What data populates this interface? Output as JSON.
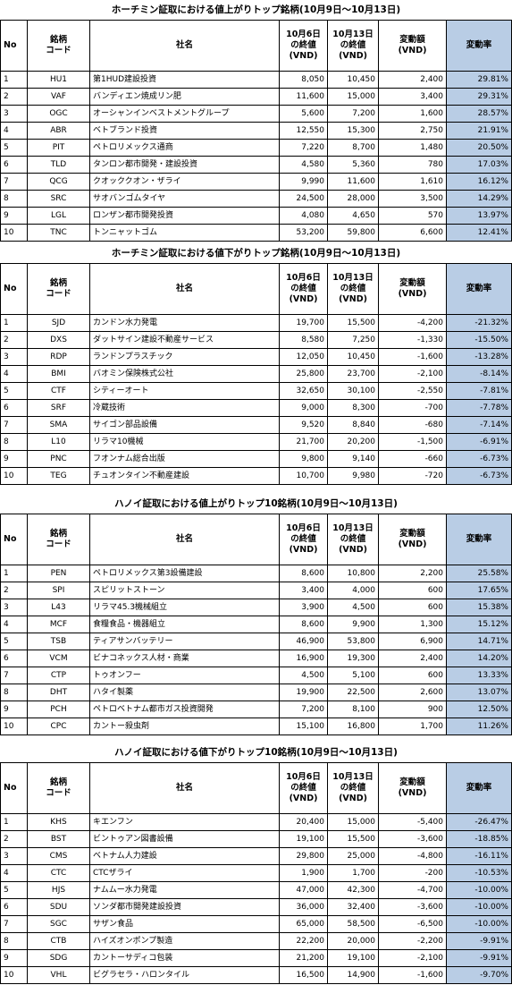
{
  "headers": {
    "no": "No",
    "code_line1": "銘柄",
    "code_line2": "コード",
    "name": "社名",
    "prev_line1": "10月6日",
    "prev_line2": "の終値",
    "prev_line3": "(VND)",
    "curr_line1": "10月13日",
    "curr_line2": "の終値",
    "curr_line3": "(VND)",
    "change_line1": "変動額",
    "change_line2": "(VND)",
    "rate": "変動率"
  },
  "sections": [
    {
      "title": "ホーチミン証取における値上がりトップ銘柄(10月9日～10月13日)",
      "rows": [
        {
          "no": "1",
          "code": "HU1",
          "name": "第1HUD建設投資",
          "prev": "8,050",
          "curr": "10,450",
          "change": "2,400",
          "rate": "29.81%"
        },
        {
          "no": "2",
          "code": "VAF",
          "name": "バンディエン焼成リン肥",
          "prev": "11,600",
          "curr": "15,000",
          "change": "3,400",
          "rate": "29.31%"
        },
        {
          "no": "3",
          "code": "OGC",
          "name": "オーシャンインベストメントグループ",
          "prev": "5,600",
          "curr": "7,200",
          "change": "1,600",
          "rate": "28.57%"
        },
        {
          "no": "4",
          "code": "ABR",
          "name": "ベトブランド投資",
          "prev": "12,550",
          "curr": "15,300",
          "change": "2,750",
          "rate": "21.91%"
        },
        {
          "no": "5",
          "code": "PIT",
          "name": "ペトロリメックス通商",
          "prev": "7,220",
          "curr": "8,700",
          "change": "1,480",
          "rate": "20.50%"
        },
        {
          "no": "6",
          "code": "TLD",
          "name": "タンロン都市開発・建設投資",
          "prev": "4,580",
          "curr": "5,360",
          "change": "780",
          "rate": "17.03%"
        },
        {
          "no": "7",
          "code": "QCG",
          "name": "クオッククオン・ザライ",
          "prev": "9,990",
          "curr": "11,600",
          "change": "1,610",
          "rate": "16.12%"
        },
        {
          "no": "8",
          "code": "SRC",
          "name": "サオバンゴムタイヤ",
          "prev": "24,500",
          "curr": "28,000",
          "change": "3,500",
          "rate": "14.29%"
        },
        {
          "no": "9",
          "code": "LGL",
          "name": "ロンザン都市開発投資",
          "prev": "4,080",
          "curr": "4,650",
          "change": "570",
          "rate": "13.97%"
        },
        {
          "no": "10",
          "code": "TNC",
          "name": "トンニャットゴム",
          "prev": "53,200",
          "curr": "59,800",
          "change": "6,600",
          "rate": "12.41%"
        }
      ]
    },
    {
      "title": "ホーチミン証取における値下がりトップ銘柄(10月9日～10月13日)",
      "rows": [
        {
          "no": "1",
          "code": "SJD",
          "name": "カンドン水力発電",
          "prev": "19,700",
          "curr": "15,500",
          "change": "-4,200",
          "rate": "-21.32%"
        },
        {
          "no": "2",
          "code": "DXS",
          "name": " ダットサイン建設不動産サービス",
          "prev": "8,580",
          "curr": "7,250",
          "change": "-1,330",
          "rate": "-15.50%"
        },
        {
          "no": "3",
          "code": "RDP",
          "name": "ランドンプラスチック",
          "prev": "12,050",
          "curr": "10,450",
          "change": "-1,600",
          "rate": "-13.28%"
        },
        {
          "no": "4",
          "code": "BMI",
          "name": "バオミン保険株式公社",
          "prev": "25,800",
          "curr": "23,700",
          "change": "-2,100",
          "rate": "-8.14%"
        },
        {
          "no": "5",
          "code": "CTF",
          "name": "シティーオート",
          "prev": "32,650",
          "curr": "30,100",
          "change": "-2,550",
          "rate": "-7.81%"
        },
        {
          "no": "6",
          "code": "SRF",
          "name": "冷蔵技術",
          "prev": "9,000",
          "curr": "8,300",
          "change": "-700",
          "rate": "-7.78%"
        },
        {
          "no": "7",
          "code": "SMA",
          "name": "サイゴン部品設備",
          "prev": "9,520",
          "curr": "8,840",
          "change": "-680",
          "rate": "-7.14%"
        },
        {
          "no": "8",
          "code": "L10",
          "name": "リラマ10機械",
          "prev": "21,700",
          "curr": "20,200",
          "change": "-1,500",
          "rate": "-6.91%"
        },
        {
          "no": "9",
          "code": "PNC",
          "name": "フオンナム総合出版",
          "prev": "9,800",
          "curr": "9,140",
          "change": "-660",
          "rate": "-6.73%"
        },
        {
          "no": "10",
          "code": "TEG",
          "name": "チュオンタイン不動産建設",
          "prev": "10,700",
          "curr": "9,980",
          "change": "-720",
          "rate": "-6.73%"
        }
      ]
    },
    {
      "title": "ハノイ証取における値上がりトップ10銘柄(10月9日～10月13日)",
      "rows": [
        {
          "no": "1",
          "code": "PEN",
          "name": "ペトロリメックス第3設備建設",
          "prev": "8,600",
          "curr": "10,800",
          "change": "2,200",
          "rate": "25.58%"
        },
        {
          "no": "2",
          "code": "SPI",
          "name": "スピリットストーン",
          "prev": "3,400",
          "curr": "4,000",
          "change": "600",
          "rate": "17.65%"
        },
        {
          "no": "3",
          "code": "L43",
          "name": "リラマ45.3機械組立",
          "prev": "3,900",
          "curr": "4,500",
          "change": "600",
          "rate": "15.38%"
        },
        {
          "no": "4",
          "code": "MCF",
          "name": "食糧食品・機器組立",
          "prev": "8,600",
          "curr": "9,900",
          "change": "1,300",
          "rate": "15.12%"
        },
        {
          "no": "5",
          "code": "TSB",
          "name": "ティアサンバッテリー",
          "prev": "46,900",
          "curr": "53,800",
          "change": "6,900",
          "rate": "14.71%"
        },
        {
          "no": "6",
          "code": "VCM",
          "name": "ビナコネックス人材・商業",
          "prev": "16,900",
          "curr": "19,300",
          "change": "2,400",
          "rate": "14.20%"
        },
        {
          "no": "7",
          "code": "CTP",
          "name": "トゥオンフー",
          "prev": "4,500",
          "curr": "5,100",
          "change": "600",
          "rate": "13.33%"
        },
        {
          "no": "8",
          "code": "DHT",
          "name": "ハタイ製薬",
          "prev": "19,900",
          "curr": "22,500",
          "change": "2,600",
          "rate": "13.07%"
        },
        {
          "no": "9",
          "code": "PCH",
          "name": "ペトロベトナム都市ガス投資開発",
          "prev": "7,200",
          "curr": "8,100",
          "change": "900",
          "rate": "12.50%"
        },
        {
          "no": "10",
          "code": "CPC",
          "name": "カントー殺虫剤",
          "prev": "15,100",
          "curr": "16,800",
          "change": "1,700",
          "rate": "11.26%"
        }
      ]
    },
    {
      "title": "ハノイ証取における値下がりトップ10銘柄(10月9日～10月13日)",
      "rows": [
        {
          "no": "1",
          "code": "KHS",
          "name": "キエンフン",
          "prev": "20,400",
          "curr": "15,000",
          "change": "-5,400",
          "rate": "-26.47%"
        },
        {
          "no": "2",
          "code": "BST",
          "name": "ビントゥアン図書設備",
          "prev": "19,100",
          "curr": "15,500",
          "change": "-3,600",
          "rate": "-18.85%"
        },
        {
          "no": "3",
          "code": "CMS",
          "name": "ベトナム人力建設",
          "prev": "29,800",
          "curr": "25,000",
          "change": "-4,800",
          "rate": "-16.11%"
        },
        {
          "no": "4",
          "code": "CTC",
          "name": "CTCザライ",
          "prev": "1,900",
          "curr": "1,700",
          "change": "-200",
          "rate": "-10.53%"
        },
        {
          "no": "5",
          "code": "HJS",
          "name": "ナムムー水力発電",
          "prev": "47,000",
          "curr": "42,300",
          "change": "-4,700",
          "rate": "-10.00%"
        },
        {
          "no": "6",
          "code": "SDU",
          "name": "ソンダ都市開発建設投資",
          "prev": "36,000",
          "curr": "32,400",
          "change": "-3,600",
          "rate": "-10.00%"
        },
        {
          "no": "7",
          "code": "SGC",
          "name": "サザン食品",
          "prev": "65,000",
          "curr": "58,500",
          "change": "-6,500",
          "rate": "-10.00%"
        },
        {
          "no": "8",
          "code": "CTB",
          "name": "ハイズオンポンプ製造",
          "prev": "22,200",
          "curr": "20,000",
          "change": "-2,200",
          "rate": "-9.91%"
        },
        {
          "no": "9",
          "code": "SDG",
          "name": "カントーサディコ包装",
          "prev": "21,200",
          "curr": "19,100",
          "change": "-2,100",
          "rate": "-9.91%"
        },
        {
          "no": "10",
          "code": "VHL",
          "name": "ビグラセラ・ハロンタイル",
          "prev": "16,500",
          "curr": "14,900",
          "change": "-1,600",
          "rate": "-9.70%"
        }
      ]
    }
  ]
}
